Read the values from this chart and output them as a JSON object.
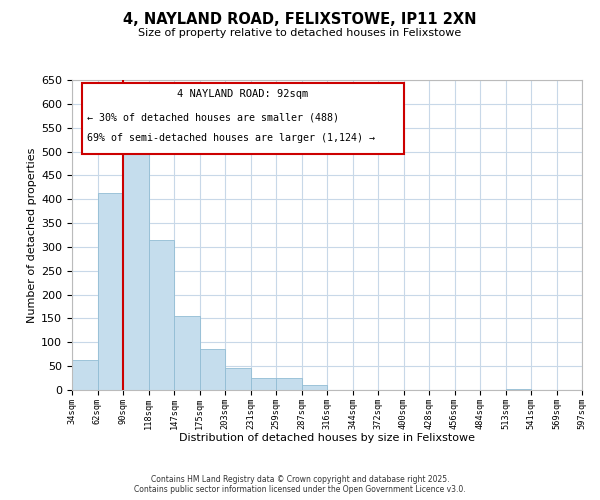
{
  "title": "4, NAYLAND ROAD, FELIXSTOWE, IP11 2XN",
  "subtitle": "Size of property relative to detached houses in Felixstowe",
  "xlabel": "Distribution of detached houses by size in Felixstowe",
  "ylabel": "Number of detached properties",
  "bar_values": [
    63,
    413,
    510,
    315,
    155,
    85,
    46,
    25,
    25,
    10,
    0,
    0,
    0,
    0,
    0,
    0,
    0,
    3,
    0,
    0
  ],
  "bar_labels": [
    "34sqm",
    "62sqm",
    "90sqm",
    "118sqm",
    "147sqm",
    "175sqm",
    "203sqm",
    "231sqm",
    "259sqm",
    "287sqm",
    "316sqm",
    "344sqm",
    "372sqm",
    "400sqm",
    "428sqm",
    "456sqm",
    "484sqm",
    "513sqm",
    "541sqm",
    "569sqm",
    "597sqm"
  ],
  "bar_color": "#c5dded",
  "bar_edge_color": "#92bdd4",
  "vline_x": 2,
  "vline_color": "#cc0000",
  "ylim": [
    0,
    650
  ],
  "yticks": [
    0,
    50,
    100,
    150,
    200,
    250,
    300,
    350,
    400,
    450,
    500,
    550,
    600,
    650
  ],
  "annotation_title": "4 NAYLAND ROAD: 92sqm",
  "annotation_line1": "← 30% of detached houses are smaller (488)",
  "annotation_line2": "69% of semi-detached houses are larger (1,124) →",
  "annotation_box_color": "#cc0000",
  "footer_line1": "Contains HM Land Registry data © Crown copyright and database right 2025.",
  "footer_line2": "Contains public sector information licensed under the Open Government Licence v3.0.",
  "background_color": "#ffffff",
  "grid_color": "#c8d8e8"
}
